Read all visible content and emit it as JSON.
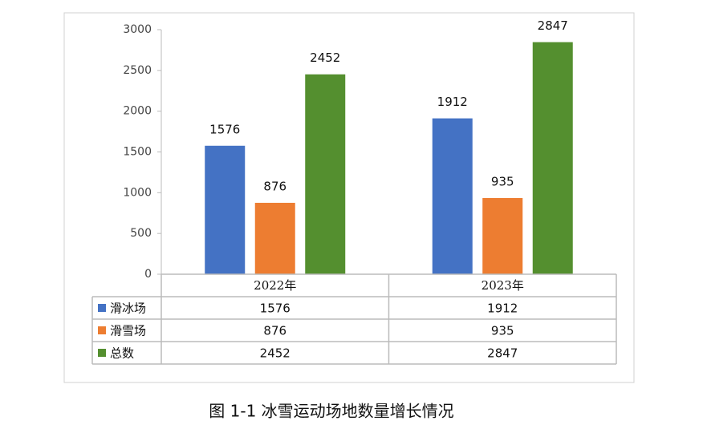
{
  "chart_data": {
    "type": "bar",
    "caption": "图 1-1  冰雪运动场地数量增长情况",
    "categories": [
      "2022年",
      "2023年"
    ],
    "series": [
      {
        "name": "滑冰场",
        "color": "#4472c4",
        "values": [
          1576,
          1912
        ]
      },
      {
        "name": "滑雪场",
        "color": "#ed7d31",
        "values": [
          876,
          935
        ]
      },
      {
        "name": "总数",
        "color": "#548f2f",
        "values": [
          2452,
          2847
        ]
      }
    ],
    "ylim": [
      0,
      3000
    ],
    "yticks": [
      0,
      500,
      1000,
      1500,
      2000,
      2500,
      3000
    ],
    "grid": false,
    "data_table": true
  }
}
